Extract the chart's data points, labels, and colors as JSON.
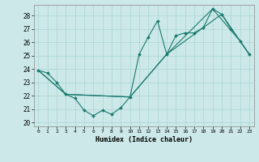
{
  "xlabel": "Humidex (Indice chaleur)",
  "xlim": [
    -0.5,
    23.5
  ],
  "ylim": [
    19.7,
    28.8
  ],
  "yticks": [
    20,
    21,
    22,
    23,
    24,
    25,
    26,
    27,
    28
  ],
  "xticks": [
    0,
    1,
    2,
    3,
    4,
    5,
    6,
    7,
    8,
    9,
    10,
    11,
    12,
    13,
    14,
    15,
    16,
    17,
    18,
    19,
    20,
    21,
    22,
    23
  ],
  "color": "#1a7a6e",
  "bg_color": "#cce8e8",
  "grid_color": "#aad4d4",
  "line1_x": [
    0,
    1,
    2,
    3,
    4,
    5,
    6,
    7,
    8,
    9,
    10,
    11,
    12,
    13,
    14,
    15,
    16,
    17,
    18,
    19,
    20,
    21,
    22,
    23
  ],
  "line1_y": [
    23.9,
    23.7,
    23.0,
    22.1,
    21.8,
    20.9,
    20.5,
    20.9,
    20.6,
    21.1,
    21.9,
    25.1,
    26.4,
    27.6,
    25.1,
    26.5,
    26.7,
    26.7,
    27.1,
    28.5,
    28.1,
    27.0,
    26.1,
    25.1
  ],
  "line2_x": [
    0,
    3,
    10,
    14,
    20,
    23
  ],
  "line2_y": [
    23.9,
    22.1,
    21.9,
    25.1,
    28.1,
    25.1
  ],
  "line3_x": [
    0,
    3,
    10,
    14,
    19,
    22,
    23
  ],
  "line3_y": [
    23.9,
    22.1,
    21.9,
    25.1,
    28.5,
    26.1,
    25.1
  ]
}
